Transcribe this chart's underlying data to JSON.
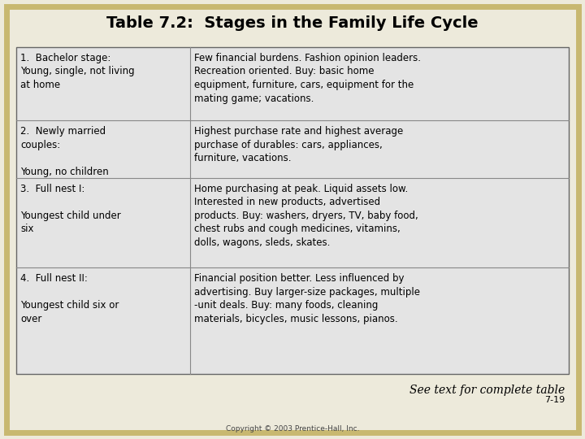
{
  "title": "Table 7.2:  Stages in the Family Life Cycle",
  "title_fontsize": 14,
  "background_color": "#edeadb",
  "table_bg": "#e4e4e4",
  "border_color": "#c8b870",
  "rows": [
    {
      "left": "1.  Bachelor stage:\nYoung, single, not living\nat home",
      "right": "Few financial burdens. Fashion opinion leaders.\nRecreation oriented. Buy: basic home\nequipment, furniture, cars, equipment for the\nmating game; vacations."
    },
    {
      "left": "2.  Newly married\ncouples:\n\nYoung, no children",
      "right": "Highest purchase rate and highest average\npurchase of durables: cars, appliances,\nfurniture, vacations."
    },
    {
      "left": "3.  Full nest I:\n\nYoungest child under\nsix",
      "right": "Home purchasing at peak. Liquid assets low.\nInterested in new products, advertised\nproducts. Buy: washers, dryers, TV, baby food,\nchest rubs and cough medicines, vitamins,\ndolls, wagons, sleds, skates."
    },
    {
      "left": "4.  Full nest II:\n\nYoungest child six or\nover",
      "right": "Financial position better. Less influenced by\nadvertising. Buy larger-size packages, multiple\n-unit deals. Buy: many foods, cleaning\nmaterials, bicycles, music lessons, pianos."
    }
  ],
  "footer_italic": "See text for complete table",
  "footer_number": "7-19",
  "copyright": "Copyright © 2003 Prentice-Hall, Inc.",
  "font_size": 8.5
}
